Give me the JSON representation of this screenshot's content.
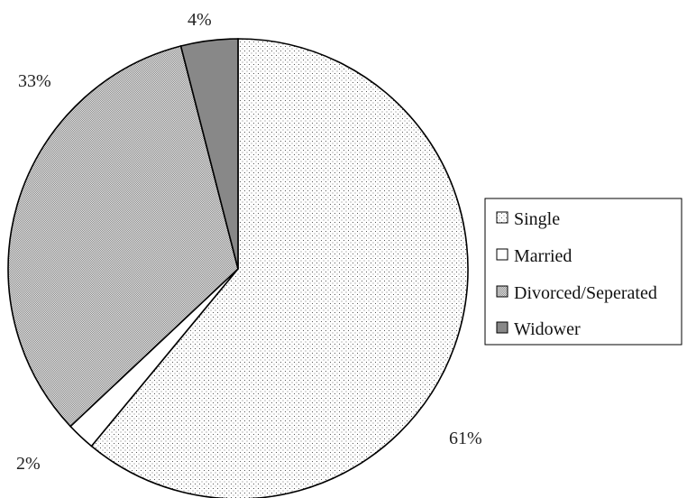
{
  "chart_data": {
    "type": "pie",
    "categories": [
      "Single",
      "Married",
      "Divorced/Seperated",
      "Widower"
    ],
    "values": [
      61,
      2,
      33,
      4
    ],
    "value_labels": [
      "61%",
      "2%",
      "33%",
      "4%"
    ],
    "start": "12 o'clock",
    "direction": "clockwise",
    "legend_position": "right",
    "colors": {
      "outline": "#000000",
      "Single": "#ffffff",
      "Married": "#ffffff",
      "Divorced/Seperated": "#c8c8c8",
      "Widower": "#888888"
    },
    "patterns": {
      "Single": "sparse-dots",
      "Married": "none",
      "Divorced/Seperated": "fine-checker",
      "Widower": "solid"
    }
  }
}
